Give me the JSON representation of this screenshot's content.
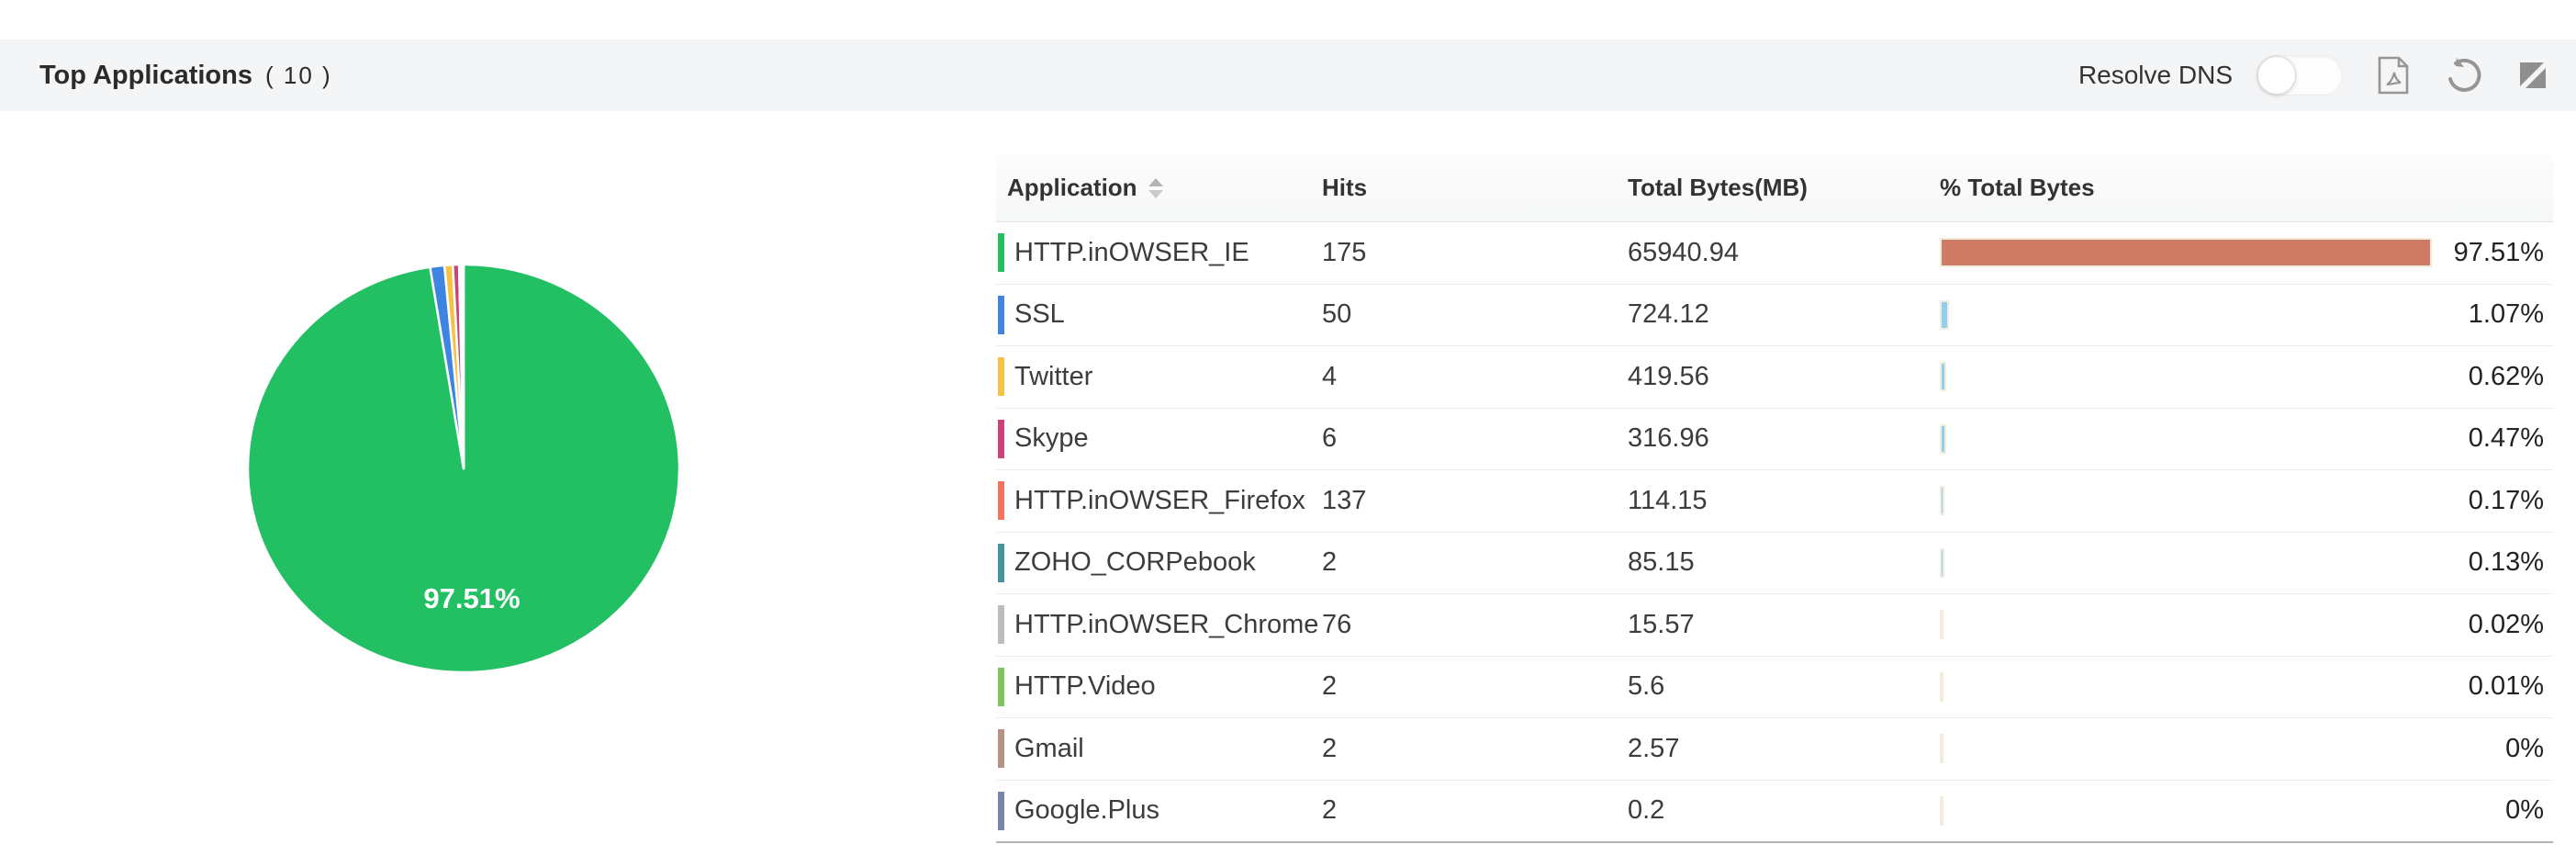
{
  "header": {
    "title": "Top Applications",
    "count": "( 10 )",
    "resolve_dns_label": "Resolve DNS",
    "resolve_dns_state": "off",
    "icons": {
      "export": "pdf-export",
      "refresh": "refresh",
      "resize": "expand-collapse"
    }
  },
  "table": {
    "columns": {
      "application": "Application",
      "hits": "Hits",
      "bytes": "Total Bytes(MB)",
      "pct": "% Total Bytes"
    },
    "rows": [
      {
        "app": "HTTP.inOWSER_IE",
        "hits": "175",
        "bytes": "65940.94",
        "pct_label": "97.51%",
        "pct": 97.51,
        "legend_color": "#22c063",
        "bar_color": "#cd7b65"
      },
      {
        "app": "SSL",
        "hits": "50",
        "bytes": "724.12",
        "pct_label": "1.07%",
        "pct": 1.07,
        "legend_color": "#3d85e0",
        "bar_color": "#8fd0f1"
      },
      {
        "app": "Twitter",
        "hits": "4",
        "bytes": "419.56",
        "pct_label": "0.62%",
        "pct": 0.62,
        "legend_color": "#f7c144",
        "bar_color": "#8fd0f1"
      },
      {
        "app": "Skype",
        "hits": "6",
        "bytes": "316.96",
        "pct_label": "0.47%",
        "pct": 0.47,
        "legend_color": "#cc4477",
        "bar_color": "#8fd0f1"
      },
      {
        "app": "HTTP.inOWSER_Firefox",
        "hits": "137",
        "bytes": "114.15",
        "pct_label": "0.17%",
        "pct": 0.17,
        "legend_color": "#f4735c",
        "bar_color": "#8fd0f1"
      },
      {
        "app": "ZOHO_CORPebook",
        "hits": "2",
        "bytes": "85.15",
        "pct_label": "0.13%",
        "pct": 0.13,
        "legend_color": "#45939b",
        "bar_color": "#8fd0f1"
      },
      {
        "app": "HTTP.inOWSER_Chrome",
        "hits": "76",
        "bytes": "15.57",
        "pct_label": "0.02%",
        "pct": 0.02,
        "legend_color": "#bdbdbd",
        "bar_color": "#8fd0f1"
      },
      {
        "app": "HTTP.Video",
        "hits": "2",
        "bytes": "5.6",
        "pct_label": "0.01%",
        "pct": 0.01,
        "legend_color": "#82c35c",
        "bar_color": "#8fd0f1"
      },
      {
        "app": "Gmail",
        "hits": "2",
        "bytes": "2.57",
        "pct_label": "0%",
        "pct": 0,
        "legend_color": "#b59381",
        "bar_color": "#8fd0f1"
      },
      {
        "app": "Google.Plus",
        "hits": "2",
        "bytes": "0.2",
        "pct_label": "0%",
        "pct": 0,
        "legend_color": "#7986ac",
        "bar_color": "#8fd0f1"
      }
    ]
  },
  "chart_data": {
    "type": "pie",
    "title": "Top Applications ( 10 )",
    "inner_label": "97.51%",
    "legend_position": "none",
    "series": [
      {
        "name": "HTTP.inOWSER_IE",
        "value": 97.51,
        "color": "#22c063"
      },
      {
        "name": "SSL",
        "value": 1.07,
        "color": "#3d85e0"
      },
      {
        "name": "Twitter",
        "value": 0.62,
        "color": "#f7c144"
      },
      {
        "name": "Skype",
        "value": 0.47,
        "color": "#cc4477"
      },
      {
        "name": "HTTP.inOWSER_Firefox",
        "value": 0.17,
        "color": "#f4735c"
      },
      {
        "name": "ZOHO_CORPebook",
        "value": 0.13,
        "color": "#45939b"
      },
      {
        "name": "HTTP.inOWSER_Chrome",
        "value": 0.02,
        "color": "#bdbdbd"
      },
      {
        "name": "HTTP.Video",
        "value": 0.01,
        "color": "#82c35c"
      },
      {
        "name": "Gmail",
        "value": 0,
        "color": "#b59381"
      },
      {
        "name": "Google.Plus",
        "value": 0,
        "color": "#7986ac"
      }
    ]
  },
  "colors": {
    "titlebar_bg": "#f4f5f6",
    "pie_label_text": "#ffffff",
    "bar_border": "#f1ecdc",
    "icon_gray": "#969696",
    "table_bottom_border": "#b3b3b3"
  }
}
